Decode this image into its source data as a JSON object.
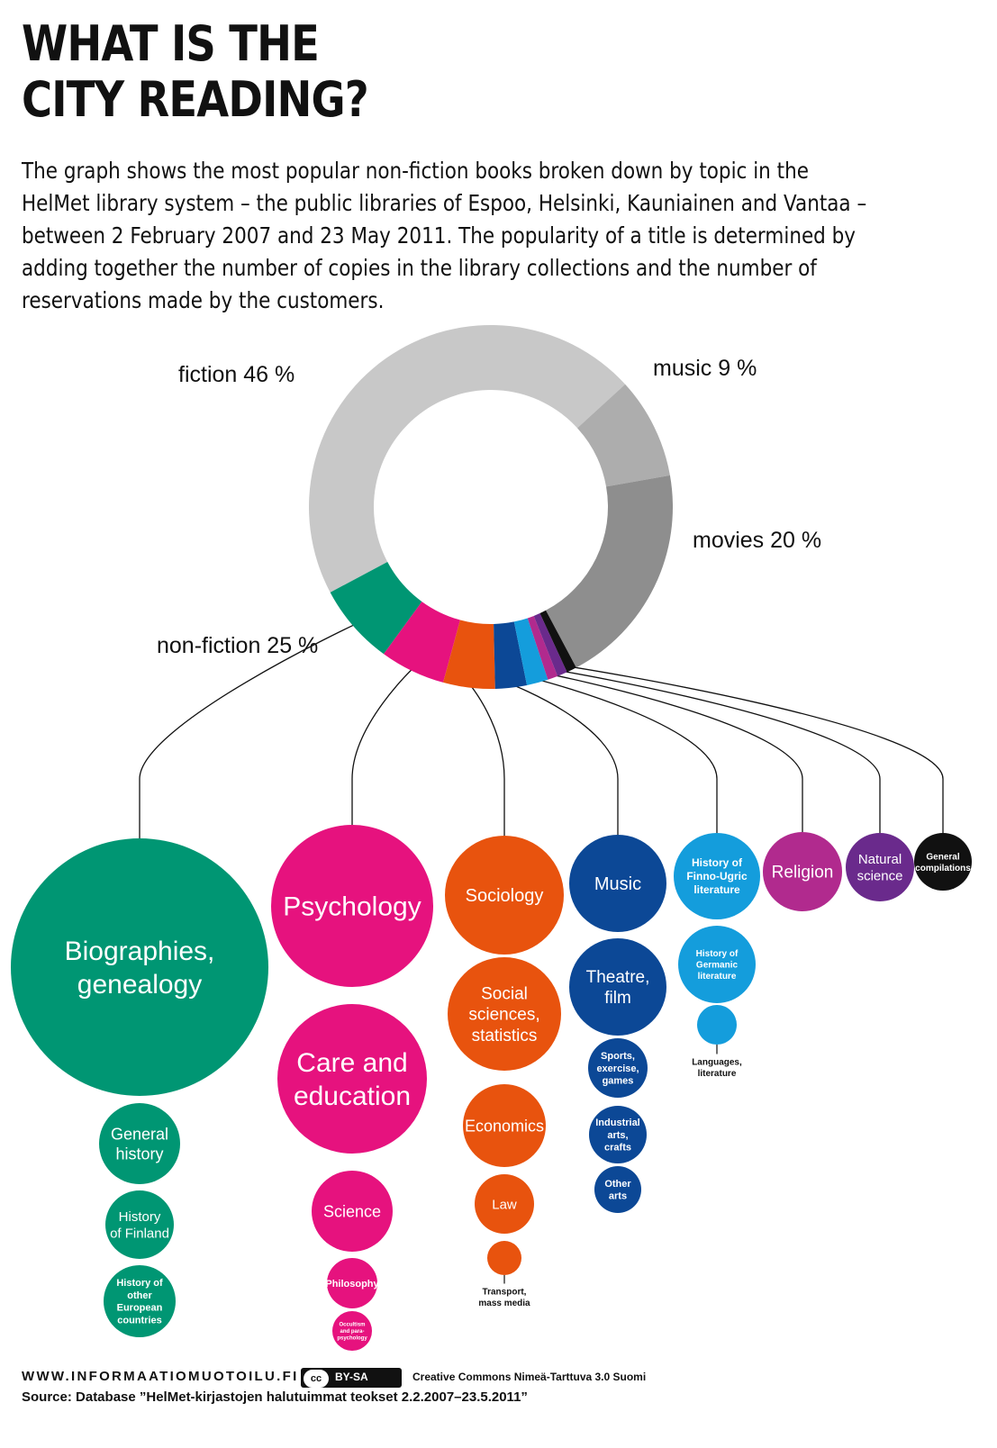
{
  "title_lines": [
    "WHAT IS THE",
    "CITY READING?"
  ],
  "description_lines": [
    "The graph shows the most popular non-fiction books broken down by topic in the",
    "HelMet library system – the public libraries of Espoo, Helsinki, Kauniainen and Vantaa –",
    "between 2 February 2007 and 23 May 2011. The popularity of a title is determined by",
    "adding together the number of copies in the library collections and the number of",
    "reservations made by the customers."
  ],
  "chart_data": {
    "type": "pie",
    "donut": {
      "segments": [
        {
          "label": "fiction 46 %",
          "value": 46,
          "color": "#c8c8c8"
        },
        {
          "label": "music 9 %",
          "value": 9,
          "color": "#adadad"
        },
        {
          "label": "movies 20 %",
          "value": 20,
          "color": "#8e8e8e"
        },
        {
          "label": "non-fiction 25 %",
          "value": 25,
          "color": "#009673"
        }
      ],
      "nonfiction_breakdown": [
        {
          "key": "biographies",
          "value": 7.2,
          "color": "#009673"
        },
        {
          "key": "psychology",
          "value": 5.8,
          "color": "#e6127e"
        },
        {
          "key": "sociology",
          "value": 4.6,
          "color": "#e8530e"
        },
        {
          "key": "music",
          "value": 2.8,
          "color": "#0c4896"
        },
        {
          "key": "finno-ugric",
          "value": 1.9,
          "color": "#149ddc"
        },
        {
          "key": "religion",
          "value": 0.9,
          "color": "#b12a8e"
        },
        {
          "key": "natural-science",
          "value": 0.9,
          "color": "#6a2a8c"
        },
        {
          "key": "general-compilations",
          "value": 0.9,
          "color": "#111111"
        }
      ]
    },
    "categories": [
      {
        "key": "biographies",
        "color": "#009673",
        "items": [
          "Biographies, genealogy",
          "General history",
          "History of Finland",
          "History of other European countries"
        ]
      },
      {
        "key": "psychology",
        "color": "#e6127e",
        "items": [
          "Psychology",
          "Care and education",
          "Science",
          "Philosophy",
          "Occultism and para-psychology"
        ]
      },
      {
        "key": "sociology",
        "color": "#e8530e",
        "items": [
          "Sociology",
          "Social sciences, statistics",
          "Economics",
          "Law",
          "Transport, mass media"
        ]
      },
      {
        "key": "music",
        "color": "#0c4896",
        "items": [
          "Music",
          "Theatre, film",
          "Sports, exercise, games",
          "Industrial arts, crafts",
          "Other arts"
        ]
      },
      {
        "key": "finno-ugric",
        "color": "#149ddc",
        "items": [
          "History of Finno-Ugric literature",
          "History of Germanic literature",
          "Languages, literature"
        ]
      },
      {
        "key": "religion",
        "color": "#b12a8e",
        "items": [
          "Religion"
        ]
      },
      {
        "key": "natural-science",
        "color": "#6a2a8c",
        "items": [
          "Natural science"
        ]
      },
      {
        "key": "general-compilations",
        "color": "#111111",
        "items": [
          "General compilations"
        ]
      }
    ]
  },
  "footer": {
    "site": "WWW.INFORMAATIOMUOTOILU.FI",
    "cc_badge": "BY-SA",
    "cc_symbol": "cc",
    "license": "Creative Commons Nimeä-Tarttuva 3.0 Suomi",
    "source": "Source: Database ”HelMet-kirjastojen halutuimmat teokset 2.2.2007–23.5.2011”"
  }
}
